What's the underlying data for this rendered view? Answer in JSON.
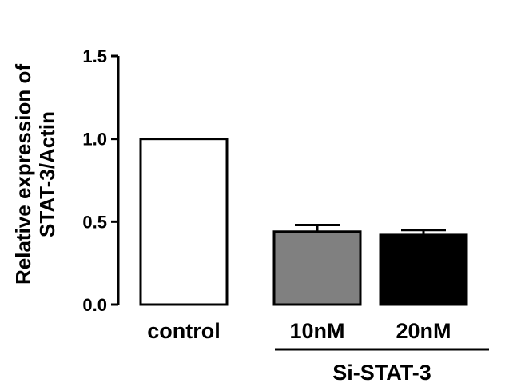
{
  "chart_data": {
    "type": "bar",
    "title": "",
    "ylabel_lines": [
      "Relative expression of",
      "STAT-3/Actin"
    ],
    "xlabel": "",
    "categories": [
      "control",
      "10nM",
      "20nM"
    ],
    "values": [
      1.0,
      0.44,
      0.42
    ],
    "error_upper": [
      0.0,
      0.04,
      0.03
    ],
    "bar_colors": [
      "#ffffff",
      "#808080",
      "#000000"
    ],
    "bar_edge_color": "#000000",
    "ylim": [
      0,
      1.5
    ],
    "yticks": [
      "0.0",
      "0.5",
      "1.0",
      "1.5"
    ],
    "group_label": "Si-STAT-3",
    "group_categories": [
      "10nM",
      "20nM"
    ],
    "grid": false,
    "legend": "none"
  }
}
